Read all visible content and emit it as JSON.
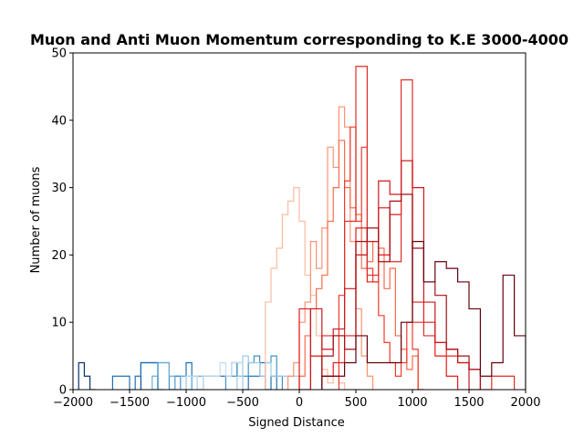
{
  "chart_data": {
    "type": "histogram",
    "title": "Muon and Anti Muon Momentum corresponding to K.E 3000-4000",
    "xlabel": "Signed Distance",
    "ylabel": "Number of muons",
    "xlim": [
      -2000,
      2000
    ],
    "ylim": [
      0,
      50
    ],
    "xticks": [
      -2000,
      -1500,
      -1000,
      -500,
      0,
      500,
      1000,
      1500,
      2000
    ],
    "yticks": [
      0,
      10,
      20,
      30,
      40,
      50
    ],
    "xtick_labels": [
      "−2000",
      "−1500",
      "−1000",
      "−500",
      "0",
      "500",
      "1000",
      "1500",
      "2000"
    ],
    "ytick_labels": [
      "0",
      "10",
      "20",
      "30",
      "40",
      "50"
    ],
    "grid": false,
    "histtype": "step",
    "series": [
      {
        "color": "#08306b",
        "edges": [
          -1950,
          -1900,
          -1850,
          -1800
        ],
        "counts": [
          4,
          2,
          0
        ]
      },
      {
        "color": "#08519c",
        "edges": [
          -1400,
          -1350,
          -1300,
          -1250,
          -1200
        ],
        "counts": [
          4,
          4,
          4,
          0
        ]
      },
      {
        "color": "#2171b5",
        "edges": [
          -1650,
          -1600,
          -1550,
          -1500,
          -1450,
          -1400,
          -1350,
          -1300,
          -1250
        ],
        "counts": [
          2,
          2,
          2,
          0,
          2,
          4,
          4,
          4
        ]
      },
      {
        "color": "#2171b5",
        "edges": [
          -1150,
          -1100,
          -1050,
          -1000,
          -950,
          -900,
          -850,
          -800,
          -750,
          -700,
          -650,
          -600,
          -550,
          -500,
          -450,
          -400,
          -350,
          -300,
          -250,
          -200
        ],
        "counts": [
          0,
          2,
          0,
          4,
          2,
          0,
          2,
          2,
          2,
          2,
          2,
          4,
          2,
          0,
          2,
          2,
          4,
          0,
          2
        ]
      },
      {
        "color": "#4292c6",
        "edges": [
          -1300,
          -1250,
          -1200,
          -1150,
          -1100,
          -1050,
          -1000,
          -950
        ],
        "counts": [
          0,
          4,
          4,
          0,
          2,
          2,
          2
        ]
      },
      {
        "color": "#4292c6",
        "edges": [
          -650,
          -600,
          -550,
          -500,
          -450,
          -400,
          -350,
          -300,
          -250,
          -200,
          -150
        ],
        "counts": [
          2,
          2,
          4,
          2,
          4,
          5,
          2,
          4,
          5,
          2
        ]
      },
      {
        "color": "#6baed6",
        "edges": [
          -1300,
          -1250,
          -1200,
          -1150,
          -1100,
          -1050,
          -1000,
          -950,
          -900,
          -850
        ],
        "counts": [
          2,
          4,
          4,
          2,
          0,
          2,
          0,
          2,
          2
        ]
      },
      {
        "color": "#9ecae1",
        "edges": [
          -550,
          -500,
          -450,
          -400,
          -350,
          -300,
          -250,
          -200,
          -150,
          -100,
          -50,
          0
        ],
        "counts": [
          2,
          5,
          4,
          4,
          2,
          4,
          2,
          2,
          2,
          2,
          2
        ]
      },
      {
        "color": "#c6dbef",
        "edges": [
          -1000,
          -950,
          -900,
          -850,
          -800,
          -750,
          -700,
          -650,
          -600,
          -550,
          -500
        ],
        "counts": [
          2,
          2,
          0,
          2,
          2,
          2,
          4,
          2,
          4,
          4
        ]
      },
      {
        "color": "#fcbba1",
        "edges": [
          -300,
          -250,
          -200,
          -150,
          -100,
          -50,
          0,
          50,
          100,
          150,
          200,
          250,
          300,
          350,
          400,
          450,
          500
        ],
        "counts": [
          13,
          18,
          21,
          26,
          28,
          30,
          25,
          17,
          14,
          8,
          3,
          1,
          2,
          1,
          0,
          0
        ]
      },
      {
        "color": "#fc9272",
        "edges": [
          -100,
          -50,
          0,
          50,
          100,
          150,
          200,
          250,
          300,
          350,
          400,
          450,
          500,
          550,
          600,
          650
        ],
        "counts": [
          2,
          4,
          10,
          13,
          22,
          18,
          24,
          36,
          33,
          42,
          39,
          22,
          12,
          5,
          2
        ]
      },
      {
        "color": "#fb6a4a",
        "edges": [
          0,
          50,
          100,
          150,
          200,
          250,
          300,
          350,
          400,
          450,
          500,
          550,
          600,
          650,
          700,
          750,
          800,
          850,
          900,
          950,
          1000,
          1050,
          1100
        ],
        "counts": [
          2,
          8,
          12,
          15,
          17,
          25,
          30,
          37,
          30,
          27,
          26,
          18,
          19,
          22,
          21,
          15,
          18,
          8,
          6,
          3,
          5,
          0
        ]
      },
      {
        "color": "#ef3b2c",
        "edges": [
          350,
          400,
          450,
          500,
          550,
          600,
          650,
          700,
          750,
          800,
          850,
          900,
          950,
          1000,
          1050,
          1100
        ],
        "counts": [
          14,
          31,
          39,
          25,
          36,
          18,
          16,
          11,
          7,
          4,
          2,
          4,
          10,
          6,
          0
        ]
      },
      {
        "color": "#e31a1c",
        "edges": [
          0,
          100,
          200,
          300,
          400,
          500,
          600,
          700,
          800,
          900,
          1000,
          1100,
          1200,
          1300,
          1400
        ],
        "counts": [
          12,
          5,
          2,
          4,
          8,
          24,
          16,
          20,
          26,
          34,
          13,
          10,
          5,
          2
        ]
      },
      {
        "color": "#de2d26",
        "edges": [
          100,
          200,
          300,
          400,
          500,
          600,
          700,
          800,
          900,
          1000,
          1100,
          1200,
          1300,
          1400,
          1500,
          1600,
          1700,
          1800,
          1900
        ],
        "counts": [
          5,
          8,
          8,
          25,
          48,
          17,
          27,
          19,
          46,
          10,
          8,
          7,
          5,
          4,
          3,
          0,
          2,
          2
        ]
      },
      {
        "color": "#cb181d",
        "edges": [
          0,
          100,
          200,
          300,
          400,
          500,
          600,
          700,
          800,
          900,
          1000,
          1100,
          1200,
          1300,
          1400,
          1500,
          1600
        ],
        "counts": [
          0,
          12,
          6,
          9,
          15,
          20,
          22,
          31,
          29,
          34,
          30,
          13,
          7,
          6,
          4,
          0
        ]
      },
      {
        "color": "#a50f15",
        "edges": [
          200,
          300,
          400,
          500,
          600,
          700,
          800,
          900,
          1000,
          1100,
          1200,
          1300,
          1400,
          1500,
          1600
        ],
        "counts": [
          5,
          8,
          6,
          22,
          24,
          19,
          28,
          29,
          21,
          16,
          14,
          6,
          5,
          3
        ]
      },
      {
        "color": "#67000d",
        "edges": [
          200,
          300,
          400,
          500,
          600,
          700,
          800,
          900,
          1000,
          1100,
          1200,
          1300,
          1400,
          1500,
          1600,
          1700,
          1800,
          1900,
          2000
        ],
        "counts": [
          2,
          2,
          4,
          8,
          4,
          4,
          4,
          10,
          22,
          16,
          19,
          18,
          16,
          12,
          2,
          4,
          17,
          8
        ]
      }
    ]
  }
}
